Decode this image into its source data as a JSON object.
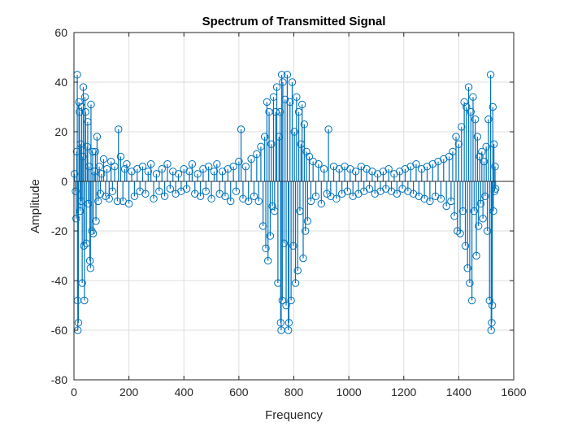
{
  "chart_data": {
    "type": "stem",
    "title": "Spectrum of Transmitted Signal",
    "xlabel": "Frequency",
    "ylabel": "Amplitude",
    "xlim": [
      0,
      1600
    ],
    "ylim": [
      -80,
      60
    ],
    "xticks": [
      "0",
      "200",
      "400",
      "600",
      "800",
      "1000",
      "1200",
      "1400",
      "1600"
    ],
    "yticks": [
      "60",
      "40",
      "20",
      "0",
      "-20",
      "-40",
      "-60",
      "-80"
    ],
    "grid": true,
    "color": "#0072BD",
    "marker": "circle",
    "baseline": 0,
    "n_points": 1536,
    "series": [
      {
        "points": [
          [
            2,
            3
          ],
          [
            6,
            -4
          ],
          [
            8,
            -15
          ],
          [
            10,
            12
          ],
          [
            12,
            43
          ],
          [
            13,
            -48
          ],
          [
            14,
            -60
          ],
          [
            16,
            -57
          ],
          [
            18,
            32
          ],
          [
            20,
            28
          ],
          [
            22,
            -12
          ],
          [
            24,
            15
          ],
          [
            26,
            -8
          ],
          [
            28,
            30
          ],
          [
            30,
            -41
          ],
          [
            32,
            10
          ],
          [
            34,
            38
          ],
          [
            36,
            -26
          ],
          [
            38,
            -48
          ],
          [
            40,
            34
          ],
          [
            42,
            28
          ],
          [
            45,
            -25
          ],
          [
            48,
            14
          ],
          [
            50,
            24
          ],
          [
            52,
            -9
          ],
          [
            55,
            6
          ],
          [
            58,
            -32
          ],
          [
            60,
            -35
          ],
          [
            62,
            31
          ],
          [
            65,
            -20
          ],
          [
            68,
            12
          ],
          [
            70,
            -21
          ],
          [
            74,
            4
          ],
          [
            78,
            12
          ],
          [
            80,
            -16
          ],
          [
            84,
            18
          ],
          [
            88,
            -8
          ],
          [
            92,
            6
          ],
          [
            96,
            -5
          ],
          [
            100,
            3
          ],
          [
            108,
            9
          ],
          [
            115,
            -6
          ],
          [
            120,
            5
          ],
          [
            128,
            -7
          ],
          [
            135,
            8
          ],
          [
            140,
            -4
          ],
          [
            148,
            6
          ],
          [
            158,
            -8
          ],
          [
            162,
            21
          ],
          [
            170,
            10
          ],
          [
            178,
            -8
          ],
          [
            185,
            5
          ],
          [
            192,
            7
          ],
          [
            200,
            -9
          ],
          [
            210,
            4
          ],
          [
            220,
            -6
          ],
          [
            230,
            5
          ],
          [
            240,
            -4
          ],
          [
            250,
            6
          ],
          [
            260,
            -5
          ],
          [
            270,
            4
          ],
          [
            280,
            7
          ],
          [
            290,
            -7
          ],
          [
            300,
            3
          ],
          [
            310,
            -4
          ],
          [
            320,
            5
          ],
          [
            330,
            -6
          ],
          [
            340,
            7
          ],
          [
            350,
            -3
          ],
          [
            360,
            4
          ],
          [
            370,
            -5
          ],
          [
            380,
            3
          ],
          [
            390,
            -4
          ],
          [
            400,
            5
          ],
          [
            410,
            -3
          ],
          [
            420,
            4
          ],
          [
            430,
            7
          ],
          [
            440,
            -5
          ],
          [
            450,
            3
          ],
          [
            460,
            -6
          ],
          [
            470,
            5
          ],
          [
            480,
            -4
          ],
          [
            490,
            6
          ],
          [
            500,
            -7
          ],
          [
            510,
            4
          ],
          [
            520,
            7
          ],
          [
            530,
            -5
          ],
          [
            540,
            4
          ],
          [
            550,
            -6
          ],
          [
            560,
            5
          ],
          [
            570,
            -8
          ],
          [
            580,
            6
          ],
          [
            590,
            -4
          ],
          [
            600,
            8
          ],
          [
            608,
            21
          ],
          [
            615,
            -7
          ],
          [
            625,
            6
          ],
          [
            635,
            -8
          ],
          [
            645,
            9
          ],
          [
            655,
            -6
          ],
          [
            665,
            11
          ],
          [
            672,
            -8
          ],
          [
            680,
            14
          ],
          [
            688,
            -18
          ],
          [
            694,
            18
          ],
          [
            698,
            -27
          ],
          [
            702,
            32
          ],
          [
            706,
            -32
          ],
          [
            710,
            28
          ],
          [
            714,
            -22
          ],
          [
            718,
            15
          ],
          [
            722,
            -10
          ],
          [
            726,
            34
          ],
          [
            730,
            -12
          ],
          [
            734,
            28
          ],
          [
            738,
            38
          ],
          [
            742,
            -41
          ],
          [
            746,
            18
          ],
          [
            750,
            28
          ],
          [
            752,
            -57
          ],
          [
            754,
            -60
          ],
          [
            756,
            43
          ],
          [
            758,
            -48
          ],
          [
            760,
            40
          ],
          [
            764,
            -25
          ],
          [
            768,
            33
          ],
          [
            772,
            -50
          ],
          [
            776,
            43
          ],
          [
            780,
            -60
          ],
          [
            782,
            -57
          ],
          [
            786,
            32
          ],
          [
            790,
            -48
          ],
          [
            794,
            40
          ],
          [
            798,
            -26
          ],
          [
            802,
            20
          ],
          [
            806,
            -41
          ],
          [
            810,
            34
          ],
          [
            814,
            -36
          ],
          [
            818,
            28
          ],
          [
            822,
            -12
          ],
          [
            826,
            15
          ],
          [
            830,
            31
          ],
          [
            834,
            -31
          ],
          [
            838,
            23
          ],
          [
            842,
            -20
          ],
          [
            846,
            12
          ],
          [
            850,
            -16
          ],
          [
            856,
            10
          ],
          [
            862,
            -8
          ],
          [
            870,
            8
          ],
          [
            880,
            -6
          ],
          [
            890,
            7
          ],
          [
            900,
            -9
          ],
          [
            910,
            5
          ],
          [
            920,
            -5
          ],
          [
            926,
            21
          ],
          [
            934,
            -6
          ],
          [
            945,
            6
          ],
          [
            955,
            -7
          ],
          [
            965,
            5
          ],
          [
            975,
            -5
          ],
          [
            985,
            6
          ],
          [
            995,
            -4
          ],
          [
            1005,
            5
          ],
          [
            1015,
            -6
          ],
          [
            1025,
            4
          ],
          [
            1035,
            -5
          ],
          [
            1045,
            6
          ],
          [
            1055,
            -4
          ],
          [
            1065,
            5
          ],
          [
            1075,
            -3
          ],
          [
            1085,
            4
          ],
          [
            1095,
            -5
          ],
          [
            1105,
            3
          ],
          [
            1115,
            -4
          ],
          [
            1125,
            4
          ],
          [
            1135,
            -3
          ],
          [
            1145,
            5
          ],
          [
            1155,
            -4
          ],
          [
            1165,
            3
          ],
          [
            1175,
            -5
          ],
          [
            1185,
            4
          ],
          [
            1195,
            -3
          ],
          [
            1205,
            5
          ],
          [
            1215,
            -4
          ],
          [
            1225,
            6
          ],
          [
            1235,
            -5
          ],
          [
            1245,
            7
          ],
          [
            1255,
            -6
          ],
          [
            1265,
            5
          ],
          [
            1275,
            -7
          ],
          [
            1285,
            6
          ],
          [
            1295,
            -8
          ],
          [
            1305,
            7
          ],
          [
            1315,
            -6
          ],
          [
            1325,
            8
          ],
          [
            1335,
            -7
          ],
          [
            1345,
            9
          ],
          [
            1355,
            -10
          ],
          [
            1365,
            10
          ],
          [
            1372,
            -8
          ],
          [
            1378,
            12
          ],
          [
            1384,
            -14
          ],
          [
            1390,
            18
          ],
          [
            1395,
            -20
          ],
          [
            1400,
            15
          ],
          [
            1405,
            -21
          ],
          [
            1410,
            22
          ],
          [
            1415,
            -12
          ],
          [
            1420,
            32
          ],
          [
            1424,
            -26
          ],
          [
            1428,
            30
          ],
          [
            1432,
            -35
          ],
          [
            1436,
            38
          ],
          [
            1440,
            -41
          ],
          [
            1444,
            28
          ],
          [
            1448,
            -48
          ],
          [
            1452,
            34
          ],
          [
            1456,
            -12
          ],
          [
            1460,
            25
          ],
          [
            1464,
            -30
          ],
          [
            1468,
            18
          ],
          [
            1472,
            -18
          ],
          [
            1476,
            10
          ],
          [
            1480,
            -9
          ],
          [
            1484,
            12
          ],
          [
            1488,
            -15
          ],
          [
            1492,
            8
          ],
          [
            1496,
            -6
          ],
          [
            1500,
            14
          ],
          [
            1504,
            -20
          ],
          [
            1508,
            25
          ],
          [
            1512,
            -48
          ],
          [
            1516,
            43
          ],
          [
            1518,
            -60
          ],
          [
            1520,
            -57
          ],
          [
            1522,
            -50
          ],
          [
            1524,
            30
          ],
          [
            1526,
            -12
          ],
          [
            1528,
            15
          ],
          [
            1530,
            -4
          ],
          [
            1532,
            6
          ],
          [
            1534,
            -3
          ]
        ]
      }
    ]
  }
}
